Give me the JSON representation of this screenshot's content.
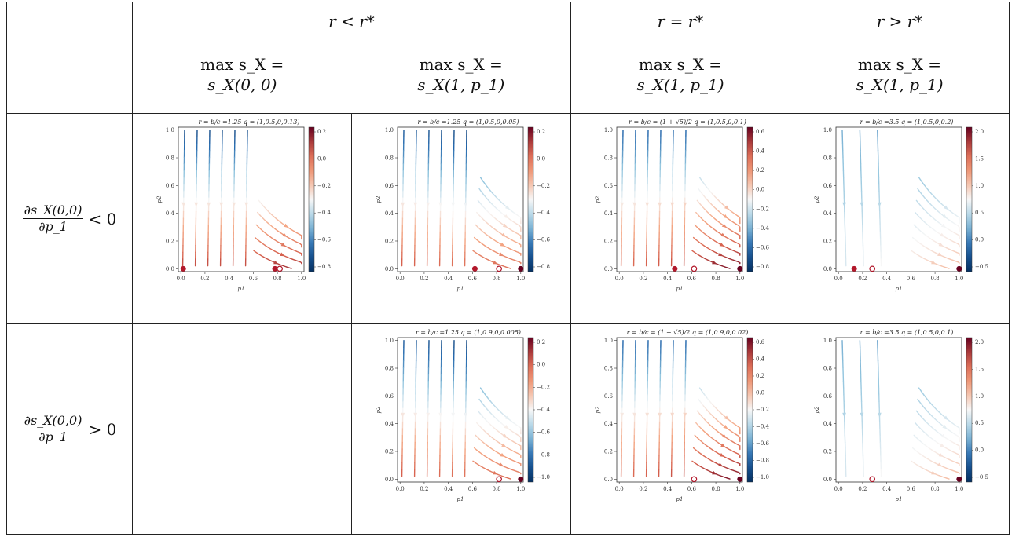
{
  "header": {
    "col1": "r < r*",
    "col2": "r = r*",
    "col3": "r > r*",
    "sub": [
      {
        "l1": "max s_X =",
        "l2": "s_X(0, 0)"
      },
      {
        "l1": "max s_X =",
        "l2": "s_X(1, p_1)"
      },
      {
        "l1": "max s_X =",
        "l2": "s_X(1, p_1)"
      },
      {
        "l1": "max s_X =",
        "l2": "s_X(1, p_1)"
      }
    ]
  },
  "rows": [
    {
      "num": "∂s_X(0,0)",
      "den": "∂p_1",
      "rel": "< 0"
    },
    {
      "num": "∂s_X(0,0)",
      "den": "∂p_1",
      "rel": "> 0"
    }
  ],
  "axes": {
    "xlabel": "p1",
    "ylabel": "p2",
    "ticks": [
      "0.0",
      "0.2",
      "0.4",
      "0.6",
      "0.8",
      "1.0"
    ]
  },
  "plots": [
    {
      "title": "r = b/c =1.25 q = (1,0.5,0,0.13)",
      "cbar": [
        "0.2",
        "0.0",
        "−0.2",
        "−0.4",
        "−0.6",
        "−0.8"
      ],
      "scheme": "A",
      "fixed": [
        0.02,
        0.78
      ],
      "open": 0.82
    },
    {
      "title": "r = b/c =1.25 q = (1,0.5,0,0.05)",
      "cbar": [
        "0.2",
        "0.0",
        "−0.2",
        "−0.4",
        "−0.6",
        "−0.8"
      ],
      "scheme": "B",
      "fixed": [
        0.62,
        1.0
      ],
      "open": 0.82
    },
    {
      "title": "r = b/c = (1 + √5)/2 q = (1,0.5,0,0.1)",
      "cbar": [
        "0.6",
        "0.4",
        "0.2",
        "0.0",
        "−0.2",
        "−0.4",
        "−0.6",
        "−0.8"
      ],
      "scheme": "C",
      "fixed": [
        0.46,
        1.0
      ],
      "open": 0.62
    },
    {
      "title": "r = b/c =3.5 q = (1,0.5,0,0.2)",
      "cbar": [
        "2.0",
        "1.5",
        "1.0",
        "0.5",
        "0.0",
        "−0.5"
      ],
      "scheme": "D",
      "fixed": [
        0.13,
        1.0
      ],
      "open": 0.28
    },
    {
      "title": "r = b/c =1.25 q = (1,0.9,0,0.005)",
      "cbar": [
        "0.2",
        "0.0",
        "−0.2",
        "−0.4",
        "−0.6",
        "−0.8",
        "−1.0"
      ],
      "scheme": "B",
      "fixed": [
        1.0
      ],
      "open": 0.82
    },
    {
      "title": "r = b/c = (1 + √5)/2 q = (1,0.9,0,0.02)",
      "cbar": [
        "0.6",
        "0.4",
        "0.2",
        "0.0",
        "−0.2",
        "−0.4",
        "−0.6",
        "−0.8",
        "−1.0"
      ],
      "scheme": "C",
      "fixed": [
        1.0
      ],
      "open": 0.62
    },
    {
      "title": "r = b/c =3.5 q = (1,0.5,0,0.1)",
      "cbar": [
        "2.0",
        "1.5",
        "1.0",
        "0.5",
        "0.0",
        "−0.5"
      ],
      "scheme": "D",
      "fixed": [
        1.0
      ],
      "open": 0.28
    }
  ],
  "colors": {
    "red": "#67001f",
    "mid": "#f7f7f7",
    "blue": "#053061"
  }
}
